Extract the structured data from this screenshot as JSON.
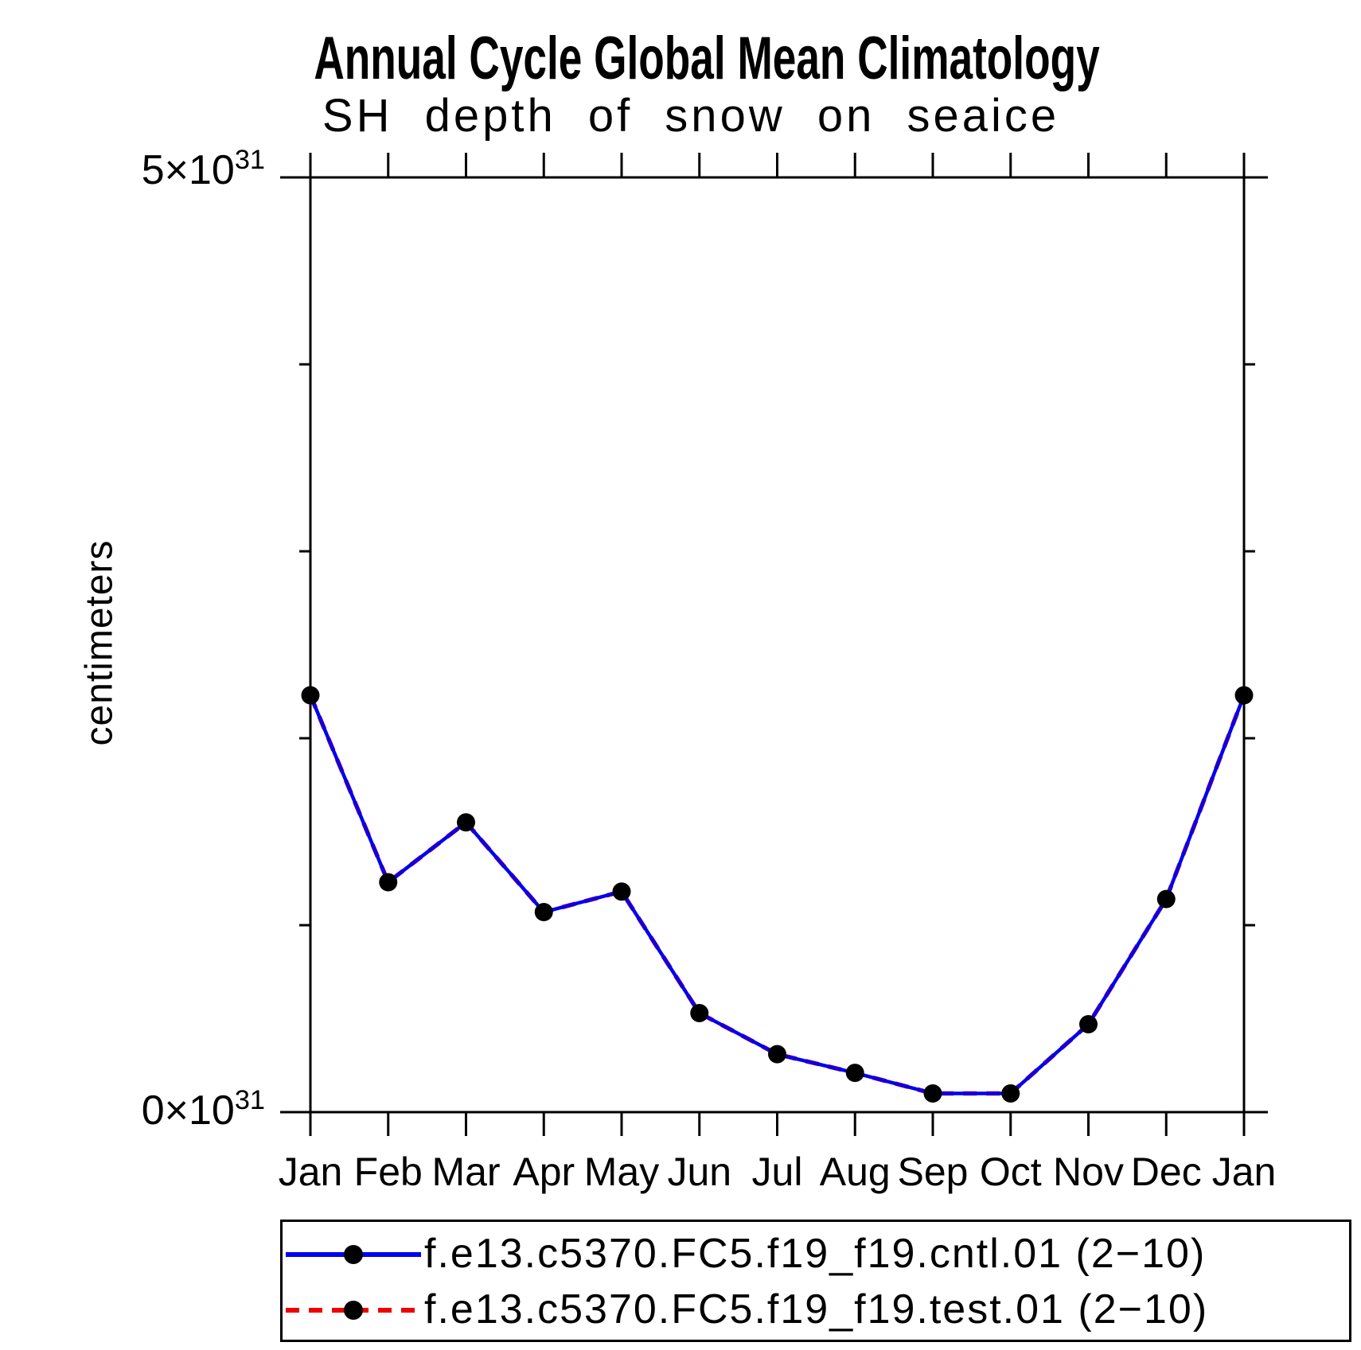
{
  "title": "Annual Cycle Global Mean Climatology",
  "subtitle": "SH depth of snow on seaice",
  "y_axis": {
    "label": "centimeters",
    "top_label": {
      "base": "5×10",
      "exp": "31"
    },
    "bottom_label": {
      "base": "0×10",
      "exp": "31"
    }
  },
  "chart_data": {
    "type": "line",
    "title": "Annual Cycle Global Mean Climatology",
    "subtitle": "SH depth of snow on seaice",
    "xlabel": "",
    "ylabel": "centimeters",
    "categories": [
      "Jan",
      "Feb",
      "Mar",
      "Apr",
      "May",
      "Jun",
      "Jul",
      "Aug",
      "Sep",
      "Oct",
      "Nov",
      "Dec",
      "Jan"
    ],
    "ylim_e31": [
      0,
      5
    ],
    "y_major_ticks_e31": [
      0,
      1,
      2,
      3,
      4,
      5
    ],
    "grid": false,
    "legend_position": "below",
    "marker": {
      "shape": "filled-circle",
      "color": "#000000"
    },
    "series": [
      {
        "name": "f.e13.c5370.FC5.f19_f19.cntl.01 (2−10)",
        "color": "#0000ee",
        "style": "solid",
        "values_e31": [
          2.23,
          1.23,
          1.55,
          1.07,
          1.18,
          0.53,
          0.31,
          0.21,
          0.1,
          0.1,
          0.47,
          1.14,
          2.23
        ]
      },
      {
        "name": "f.e13.c5370.FC5.f19_f19.test.01 (2−10)",
        "color": "#ee0000",
        "style": "dashed",
        "values_e31": [
          2.23,
          1.23,
          1.55,
          1.07,
          1.18,
          0.53,
          0.31,
          0.21,
          0.1,
          0.1,
          0.47,
          1.14,
          2.23
        ]
      }
    ]
  }
}
